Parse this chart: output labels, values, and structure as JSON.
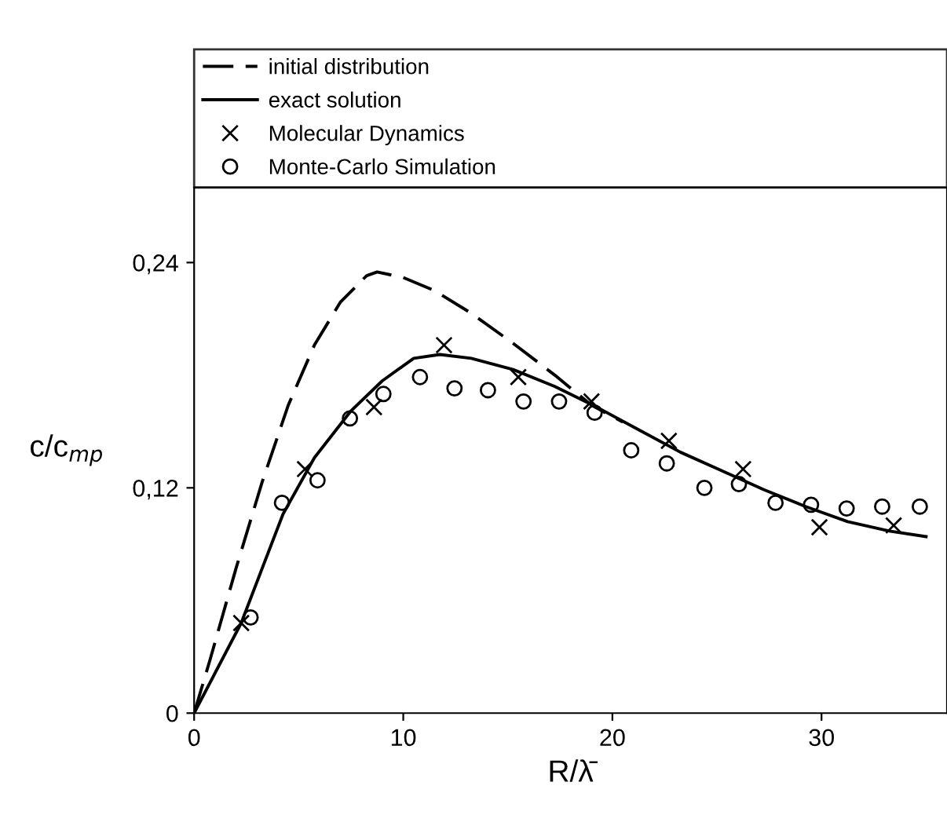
{
  "chart_data": {
    "type": "line",
    "xlabel": "R/λ̄",
    "ylabel": "c/c$_{mp}$",
    "xlim": [
      0,
      36
    ],
    "ylim": [
      0,
      0.28
    ],
    "xticks": [
      0,
      10,
      20,
      30
    ],
    "yticks": [
      0,
      {
        "value": 0.12,
        "label": "0,12"
      },
      {
        "value": 0.24,
        "label": "0,24"
      }
    ],
    "grid": false,
    "legend": "top",
    "series": [
      {
        "name": "initial distribution",
        "line_style": "dashed",
        "marker": "none",
        "color": "#000000",
        "x": [
          0,
          0.75,
          2,
          3.25,
          4.5,
          5.75,
          7,
          8.25,
          8.75,
          10,
          11.5,
          13.25,
          15.25,
          17.25,
          19,
          20.5
        ],
        "values": [
          0,
          0.028,
          0.077,
          0.123,
          0.164,
          0.196,
          0.219,
          0.233,
          0.235,
          0.232,
          0.225,
          0.213,
          0.197,
          0.18,
          0.164,
          0.155
        ]
      },
      {
        "name": "exact solution",
        "line_style": "solid",
        "marker": "none",
        "color": "#000000",
        "x": [
          0,
          2.25,
          4.25,
          5.75,
          7.5,
          9,
          10.5,
          11.75,
          13.25,
          15.25,
          17.25,
          19.25,
          21.25,
          23.25,
          25.25,
          27.25,
          29.25,
          31.25,
          33.25,
          35
        ],
        "values": [
          0,
          0.048,
          0.106,
          0.136,
          0.161,
          0.177,
          0.189,
          0.191,
          0.189,
          0.183,
          0.174,
          0.163,
          0.151,
          0.139,
          0.129,
          0.119,
          0.11,
          0.102,
          0.097,
          0.094
        ]
      },
      {
        "name": "Molecular Dynamics",
        "type": "scatter",
        "marker": "cross",
        "color": "#000000",
        "x": [
          2.25,
          5.3,
          8.6,
          11.95,
          15.5,
          19.0,
          22.7,
          26.25,
          29.9,
          33.45
        ],
        "values": [
          0.048,
          0.13,
          0.163,
          0.196,
          0.179,
          0.166,
          0.145,
          0.13,
          0.099,
          0.1
        ]
      },
      {
        "name": "Monte-Carlo Simulation",
        "type": "scatter",
        "marker": "circle",
        "color": "#000000",
        "x": [
          2.7,
          4.2,
          5.9,
          7.45,
          9.05,
          10.8,
          12.45,
          14.05,
          15.75,
          17.45,
          19.15,
          20.9,
          22.6,
          24.4,
          26.05,
          27.8,
          29.5,
          31.2,
          32.9,
          34.7
        ],
        "values": [
          0.051,
          0.112,
          0.124,
          0.157,
          0.17,
          0.179,
          0.173,
          0.172,
          0.166,
          0.166,
          0.16,
          0.14,
          0.133,
          0.12,
          0.122,
          0.112,
          0.111,
          0.109,
          0.11,
          0.11
        ]
      }
    ]
  }
}
